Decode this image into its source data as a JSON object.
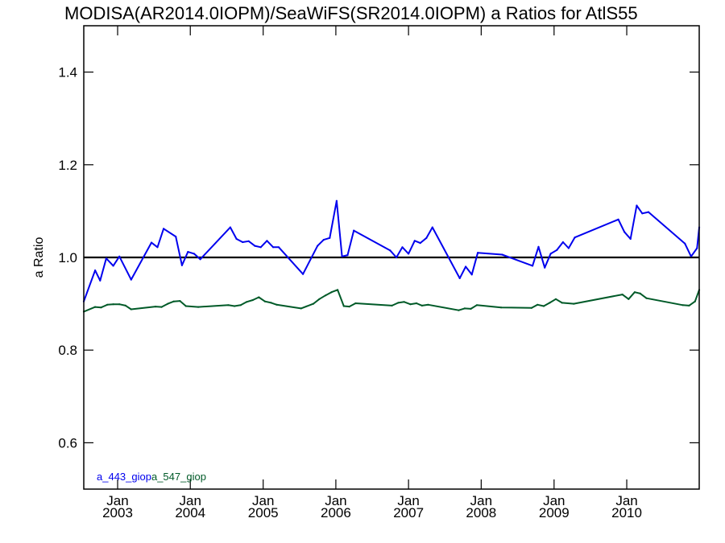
{
  "chart_data": {
    "type": "line",
    "title": "MODISA(AR2014.0IOPM)/SeaWiFS(SR2014.0IOPM)  a Ratios for AtlS55",
    "ylabel": "a Ratio",
    "xlabel": "",
    "ylim": [
      0.5,
      1.5
    ],
    "xlim": [
      "2002-07-15",
      "2010-12-31"
    ],
    "yticks": [
      0.6,
      0.8,
      1.0,
      1.2,
      1.4
    ],
    "ytick_labels": [
      "0.6",
      "0.8",
      "1.0",
      "1.2",
      "1.4"
    ],
    "xticks": [
      {
        "date": "2003-01-01",
        "month": "Jan",
        "year": "2003"
      },
      {
        "date": "2004-01-01",
        "month": "Jan",
        "year": "2004"
      },
      {
        "date": "2005-01-01",
        "month": "Jan",
        "year": "2005"
      },
      {
        "date": "2006-01-01",
        "month": "Jan",
        "year": "2006"
      },
      {
        "date": "2007-01-01",
        "month": "Jan",
        "year": "2007"
      },
      {
        "date": "2008-01-01",
        "month": "Jan",
        "year": "2008"
      },
      {
        "date": "2009-01-01",
        "month": "Jan",
        "year": "2009"
      },
      {
        "date": "2010-01-01",
        "month": "Jan",
        "year": "2010"
      }
    ],
    "reference_line": {
      "y": 1.0,
      "color": "#000000"
    },
    "grid": false,
    "legend_position": "bottom-left",
    "series": [
      {
        "name": "a_443_giop",
        "color": "#0000ee",
        "points": [
          [
            "2002-07-15",
            0.905
          ],
          [
            "2002-09-10",
            0.972
          ],
          [
            "2002-10-05",
            0.95
          ],
          [
            "2002-11-05",
            0.998
          ],
          [
            "2002-12-10",
            0.982
          ],
          [
            "2003-01-10",
            1.002
          ],
          [
            "2003-03-10",
            0.952
          ],
          [
            "2003-06-20",
            1.032
          ],
          [
            "2003-07-20",
            1.022
          ],
          [
            "2003-08-20",
            1.062
          ],
          [
            "2003-10-20",
            1.045
          ],
          [
            "2003-11-20",
            0.983
          ],
          [
            "2003-12-20",
            1.012
          ],
          [
            "2004-01-20",
            1.008
          ],
          [
            "2004-02-20",
            0.996
          ],
          [
            "2004-07-20",
            1.065
          ],
          [
            "2004-08-20",
            1.04
          ],
          [
            "2004-09-20",
            1.033
          ],
          [
            "2004-10-20",
            1.035
          ],
          [
            "2004-11-20",
            1.025
          ],
          [
            "2004-12-20",
            1.022
          ],
          [
            "2005-01-20",
            1.036
          ],
          [
            "2005-02-20",
            1.022
          ],
          [
            "2005-03-20",
            1.022
          ],
          [
            "2005-07-20",
            0.964
          ],
          [
            "2005-10-01",
            1.025
          ],
          [
            "2005-11-01",
            1.038
          ],
          [
            "2005-12-01",
            1.042
          ],
          [
            "2006-01-05",
            1.122
          ],
          [
            "2006-02-01",
            1.002
          ],
          [
            "2006-03-01",
            1.005
          ],
          [
            "2006-04-01",
            1.058
          ],
          [
            "2006-10-01",
            1.015
          ],
          [
            "2006-11-01",
            1.0
          ],
          [
            "2006-12-01",
            1.022
          ],
          [
            "2007-01-01",
            1.008
          ],
          [
            "2007-02-01",
            1.036
          ],
          [
            "2007-03-01",
            1.031
          ],
          [
            "2007-04-01",
            1.042
          ],
          [
            "2007-05-01",
            1.065
          ],
          [
            "2007-09-15",
            0.955
          ],
          [
            "2007-10-15",
            0.98
          ],
          [
            "2007-11-15",
            0.963
          ],
          [
            "2007-12-15",
            1.01
          ],
          [
            "2008-04-15",
            1.006
          ],
          [
            "2008-09-15",
            0.982
          ],
          [
            "2008-10-15",
            1.023
          ],
          [
            "2008-11-15",
            0.978
          ],
          [
            "2008-12-15",
            1.008
          ],
          [
            "2009-01-15",
            1.016
          ],
          [
            "2009-02-15",
            1.033
          ],
          [
            "2009-03-15",
            1.02
          ],
          [
            "2009-04-15",
            1.043
          ],
          [
            "2009-11-20",
            1.082
          ],
          [
            "2009-12-20",
            1.055
          ],
          [
            "2010-01-20",
            1.04
          ],
          [
            "2010-02-20",
            1.112
          ],
          [
            "2010-03-20",
            1.095
          ],
          [
            "2010-04-20",
            1.098
          ],
          [
            "2010-10-20",
            1.03
          ],
          [
            "2010-11-20",
            1.002
          ],
          [
            "2010-12-20",
            1.02
          ],
          [
            "2010-12-31",
            1.065
          ]
        ]
      },
      {
        "name": "a_547_giop",
        "color": "#005a28",
        "points": [
          [
            "2002-07-15",
            0.883
          ],
          [
            "2002-09-10",
            0.893
          ],
          [
            "2002-10-10",
            0.892
          ],
          [
            "2002-11-10",
            0.898
          ],
          [
            "2002-12-10",
            0.899
          ],
          [
            "2003-01-10",
            0.899
          ],
          [
            "2003-02-10",
            0.896
          ],
          [
            "2003-03-10",
            0.888
          ],
          [
            "2003-07-10",
            0.894
          ],
          [
            "2003-08-10",
            0.893
          ],
          [
            "2003-09-10",
            0.9
          ],
          [
            "2003-10-10",
            0.905
          ],
          [
            "2003-11-10",
            0.906
          ],
          [
            "2003-12-10",
            0.895
          ],
          [
            "2004-02-10",
            0.893
          ],
          [
            "2004-07-10",
            0.897
          ],
          [
            "2004-08-10",
            0.895
          ],
          [
            "2004-09-10",
            0.897
          ],
          [
            "2004-10-10",
            0.904
          ],
          [
            "2004-11-10",
            0.908
          ],
          [
            "2004-12-10",
            0.914
          ],
          [
            "2005-01-10",
            0.905
          ],
          [
            "2005-02-10",
            0.902
          ],
          [
            "2005-03-10",
            0.898
          ],
          [
            "2005-07-10",
            0.89
          ],
          [
            "2005-09-10",
            0.9
          ],
          [
            "2005-10-10",
            0.91
          ],
          [
            "2005-11-10",
            0.918
          ],
          [
            "2005-12-10",
            0.925
          ],
          [
            "2006-01-10",
            0.93
          ],
          [
            "2006-02-10",
            0.895
          ],
          [
            "2006-03-10",
            0.894
          ],
          [
            "2006-04-10",
            0.901
          ],
          [
            "2006-10-10",
            0.896
          ],
          [
            "2006-11-10",
            0.902
          ],
          [
            "2006-12-10",
            0.904
          ],
          [
            "2007-01-10",
            0.899
          ],
          [
            "2007-02-10",
            0.901
          ],
          [
            "2007-03-10",
            0.896
          ],
          [
            "2007-04-10",
            0.898
          ],
          [
            "2007-09-10",
            0.886
          ],
          [
            "2007-10-10",
            0.89
          ],
          [
            "2007-11-10",
            0.889
          ],
          [
            "2007-12-10",
            0.897
          ],
          [
            "2008-04-10",
            0.892
          ],
          [
            "2008-09-10",
            0.891
          ],
          [
            "2008-10-10",
            0.898
          ],
          [
            "2008-11-10",
            0.895
          ],
          [
            "2008-12-10",
            0.902
          ],
          [
            "2009-01-10",
            0.91
          ],
          [
            "2009-02-10",
            0.902
          ],
          [
            "2009-04-10",
            0.9
          ],
          [
            "2009-12-10",
            0.92
          ],
          [
            "2010-01-10",
            0.91
          ],
          [
            "2010-02-10",
            0.925
          ],
          [
            "2010-03-10",
            0.922
          ],
          [
            "2010-04-10",
            0.912
          ],
          [
            "2010-10-10",
            0.897
          ],
          [
            "2010-11-10",
            0.896
          ],
          [
            "2010-12-10",
            0.905
          ],
          [
            "2010-12-31",
            0.93
          ]
        ]
      }
    ]
  }
}
